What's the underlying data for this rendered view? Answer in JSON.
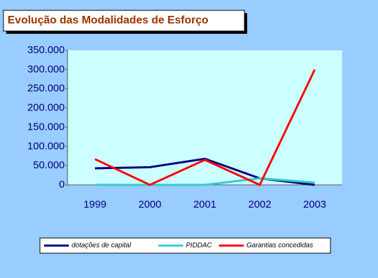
{
  "chart_data": {
    "type": "line",
    "title": "Evolução das Modalidades de Esforço",
    "categories": [
      "1999",
      "2000",
      "2001",
      "2002",
      "2003"
    ],
    "series": [
      {
        "name": "dotações de capital",
        "color": "#000080",
        "values": [
          43000,
          46000,
          68000,
          17000,
          0
        ]
      },
      {
        "name": "PIDDAC",
        "color": "#33cccc",
        "values": [
          0,
          0,
          0,
          17000,
          6000
        ]
      },
      {
        "name": "Garantias concedidas",
        "color": "#ff0000",
        "values": [
          67000,
          0,
          65000,
          0,
          300000
        ]
      }
    ],
    "ylim": [
      0,
      350000
    ],
    "yticks": [
      0,
      {
        "value": 50000,
        "label": "50.000"
      },
      {
        "value": 100000,
        "label": "100.000"
      },
      {
        "value": 150000,
        "label": "150.000"
      },
      {
        "value": 200000,
        "label": "200.000"
      },
      {
        "value": 250000,
        "label": "250.000"
      },
      {
        "value": 300000,
        "label": "300.000"
      },
      {
        "value": 350000,
        "label": "350.000"
      }
    ],
    "legend": "bottom"
  }
}
